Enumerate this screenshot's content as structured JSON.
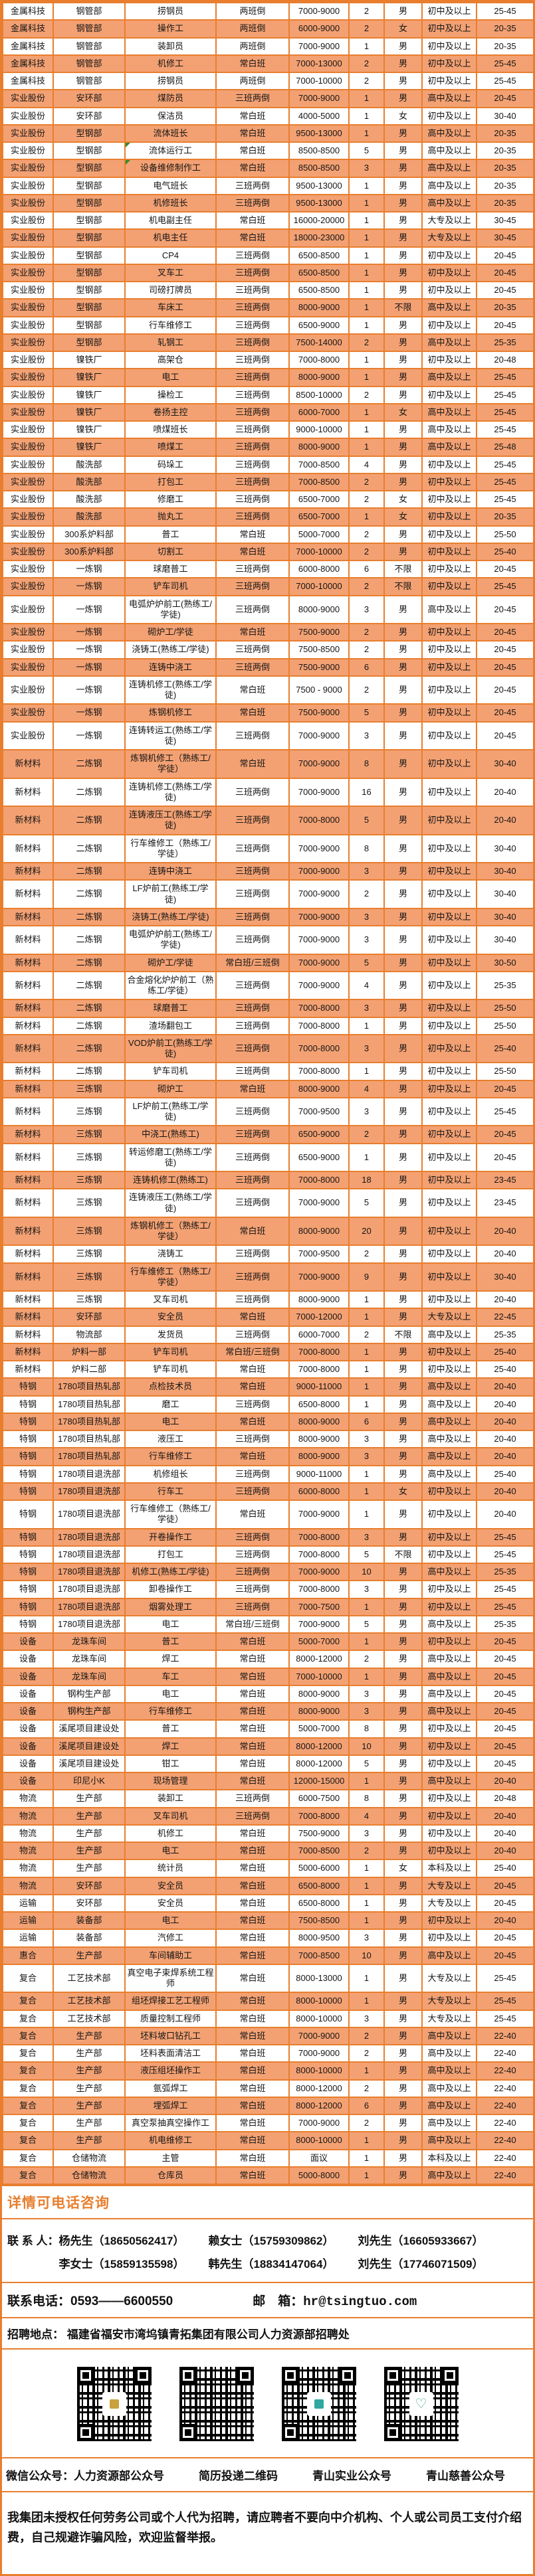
{
  "colors": {
    "accent_orange": "#e87e2e",
    "row_stripe_orange": "#f3a173",
    "flag_triangle_green": "#2e8b2e",
    "heart_green": "#3aa876"
  },
  "table": {
    "green_triangle_rows": [
      8,
      9
    ],
    "rows": [
      [
        "金属科技",
        "钢管部",
        "捞钢员",
        "两班倒",
        "7000-9000",
        "2",
        "男",
        "初中及以上",
        "25-45"
      ],
      [
        "金属科技",
        "钢管部",
        "操作工",
        "两班倒",
        "6000-9000",
        "2",
        "女",
        "初中及以上",
        "20-35"
      ],
      [
        "金属科技",
        "钢管部",
        "装卸员",
        "两班倒",
        "7000-9000",
        "1",
        "男",
        "初中及以上",
        "20-35"
      ],
      [
        "金属科技",
        "钢管部",
        "机修工",
        "常白班",
        "7000-13000",
        "2",
        "男",
        "初中及以上",
        "25-45"
      ],
      [
        "金属科技",
        "钢管部",
        "捞钢员",
        "两班倒",
        "7000-10000",
        "2",
        "男",
        "初中及以上",
        "25-45"
      ],
      [
        "实业股份",
        "安环部",
        "煤防员",
        "三班两倒",
        "7000-9000",
        "1",
        "男",
        "高中及以上",
        "20-45"
      ],
      [
        "实业股份",
        "安环部",
        "保洁员",
        "常白班",
        "4000-5000",
        "1",
        "女",
        "初中及以上",
        "30-40"
      ],
      [
        "实业股份",
        "型钢部",
        "流体班长",
        "常白班",
        "9500-13000",
        "1",
        "男",
        "高中及以上",
        "20-35"
      ],
      [
        "实业股份",
        "型钢部",
        "流体运行工",
        "常白班",
        "8500-8500",
        "5",
        "男",
        "高中及以上",
        "20-35"
      ],
      [
        "实业股份",
        "型钢部",
        "设备维修制作工",
        "常白班",
        "8500-8500",
        "3",
        "男",
        "高中及以上",
        "20-35"
      ],
      [
        "实业股份",
        "型钢部",
        "电气班长",
        "三班两倒",
        "9500-13000",
        "1",
        "男",
        "高中及以上",
        "20-35"
      ],
      [
        "实业股份",
        "型钢部",
        "机修班长",
        "三班两倒",
        "9500-13000",
        "1",
        "男",
        "高中及以上",
        "20-35"
      ],
      [
        "实业股份",
        "型钢部",
        "机电副主任",
        "常白班",
        "16000-20000",
        "1",
        "男",
        "大专及以上",
        "30-45"
      ],
      [
        "实业股份",
        "型钢部",
        "机电主任",
        "常白班",
        "18000-23000",
        "1",
        "男",
        "大专及以上",
        "30-45"
      ],
      [
        "实业股份",
        "型钢部",
        "CP4",
        "三班两倒",
        "6500-8500",
        "1",
        "男",
        "初中及以上",
        "20-45"
      ],
      [
        "实业股份",
        "型钢部",
        "叉车工",
        "三班两倒",
        "6500-8500",
        "1",
        "男",
        "初中及以上",
        "20-45"
      ],
      [
        "实业股份",
        "型钢部",
        "司磅打牌员",
        "三班两倒",
        "6500-8500",
        "1",
        "男",
        "初中及以上",
        "20-45"
      ],
      [
        "实业股份",
        "型钢部",
        "车床工",
        "三班两倒",
        "8000-9000",
        "1",
        "不限",
        "高中及以上",
        "20-35"
      ],
      [
        "实业股份",
        "型钢部",
        "行车维修工",
        "三班两倒",
        "6500-9000",
        "1",
        "男",
        "初中及以上",
        "20-45"
      ],
      [
        "实业股份",
        "型钢部",
        "轧钢工",
        "三班两倒",
        "7500-14000",
        "2",
        "男",
        "高中及以上",
        "25-35"
      ],
      [
        "实业股份",
        "镍铁厂",
        "高架仓",
        "三班两倒",
        "7000-8000",
        "1",
        "男",
        "初中及以上",
        "20-48"
      ],
      [
        "实业股份",
        "镍铁厂",
        "电工",
        "三班两倒",
        "8000-9000",
        "1",
        "男",
        "高中及以上",
        "25-45"
      ],
      [
        "实业股份",
        "镍铁厂",
        "操检工",
        "三班两倒",
        "8500-10000",
        "2",
        "男",
        "初中及以上",
        "25-45"
      ],
      [
        "实业股份",
        "镍铁厂",
        "卷扬主控",
        "三班两倒",
        "6000-7000",
        "1",
        "女",
        "高中及以上",
        "25-45"
      ],
      [
        "实业股份",
        "镍铁厂",
        "喷煤班长",
        "三班两倒",
        "9000-10000",
        "1",
        "男",
        "高中及以上",
        "25-45"
      ],
      [
        "实业股份",
        "镍铁厂",
        "喷煤工",
        "三班两倒",
        "8000-9000",
        "1",
        "男",
        "高中及以上",
        "25-48"
      ],
      [
        "实业股份",
        "酸洗部",
        "码垛工",
        "三班两倒",
        "7000-8500",
        "4",
        "男",
        "初中及以上",
        "25-45"
      ],
      [
        "实业股份",
        "酸洗部",
        "打包工",
        "三班两倒",
        "7000-8500",
        "2",
        "男",
        "初中及以上",
        "25-45"
      ],
      [
        "实业股份",
        "酸洗部",
        "修磨工",
        "三班两倒",
        "6500-7000",
        "2",
        "女",
        "初中及以上",
        "25-45"
      ],
      [
        "实业股份",
        "酸洗部",
        "抛丸工",
        "三班两倒",
        "6500-7000",
        "1",
        "女",
        "初中及以上",
        "20-35"
      ],
      [
        "实业股份",
        "300系炉料部",
        "普工",
        "常白班",
        "5000-7000",
        "2",
        "男",
        "初中及以上",
        "25-50"
      ],
      [
        "实业股份",
        "300系炉料部",
        "切割工",
        "常白班",
        "7000-10000",
        "2",
        "男",
        "初中及以上",
        "25-40"
      ],
      [
        "实业股份",
        "一炼钢",
        "球磨普工",
        "三班两倒",
        "6000-8000",
        "6",
        "不限",
        "初中及以上",
        "20-45"
      ],
      [
        "实业股份",
        "一炼钢",
        "铲车司机",
        "三班两倒",
        "7000-10000",
        "2",
        "不限",
        "初中及以上",
        "25-45"
      ],
      [
        "实业股份",
        "一炼钢",
        "电弧炉炉前工(熟练工/学徒)",
        "三班两倒",
        "8000-9000",
        "3",
        "男",
        "高中及以上",
        "20-45"
      ],
      [
        "实业股份",
        "一炼钢",
        "砌炉工/学徒",
        "常白班",
        "7500-9000",
        "2",
        "男",
        "初中及以上",
        "20-45"
      ],
      [
        "实业股份",
        "一炼钢",
        "浇铸工(熟练工/学徒)",
        "三班两倒",
        "7500-8500",
        "2",
        "男",
        "初中及以上",
        "20-45"
      ],
      [
        "实业股份",
        "一炼钢",
        "连铸中浇工",
        "三班两倒",
        "7500-9000",
        "6",
        "男",
        "初中及以上",
        "20-45"
      ],
      [
        "实业股份",
        "一炼钢",
        "连铸机修工(熟练工/学徒)",
        "常白班",
        "7500 - 9000",
        "2",
        "男",
        "初中及以上",
        "20-45"
      ],
      [
        "实业股份",
        "一炼钢",
        "炼钢机修工",
        "常白班",
        "7500-9000",
        "5",
        "男",
        "初中及以上",
        "20-45"
      ],
      [
        "实业股份",
        "一炼钢",
        "连铸转运工(熟练工/学徒)",
        "三班两倒",
        "7000-9000",
        "3",
        "男",
        "初中及以上",
        "20-45"
      ],
      [
        "新材料",
        "二炼钢",
        "炼钢机修工（熟练工/学徒）",
        "常白班",
        "7000-9000",
        "8",
        "男",
        "初中及以上",
        "30-40"
      ],
      [
        "新材料",
        "二炼钢",
        "连铸机修工(熟练工/学徒)",
        "三班两倒",
        "7000-9000",
        "16",
        "男",
        "初中及以上",
        "20-40"
      ],
      [
        "新材料",
        "二炼钢",
        "连铸液压工(熟练工/学徒)",
        "三班两倒",
        "7000-8000",
        "5",
        "男",
        "初中及以上",
        "20-40"
      ],
      [
        "新材料",
        "二炼钢",
        "行车维修工（熟练工/学徒）",
        "三班两倒",
        "7000-9000",
        "8",
        "男",
        "初中及以上",
        "30-40"
      ],
      [
        "新材料",
        "二炼钢",
        "连铸中浇工",
        "三班两倒",
        "7000-9000",
        "3",
        "男",
        "初中及以上",
        "30-40"
      ],
      [
        "新材料",
        "二炼钢",
        "LF炉前工(熟练工/学徒)",
        "三班两倒",
        "7000-9000",
        "2",
        "男",
        "初中及以上",
        "30-40"
      ],
      [
        "新材料",
        "二炼钢",
        "浇铸工(熟练工/学徒)",
        "三班两倒",
        "7000-9000",
        "3",
        "男",
        "初中及以上",
        "30-40"
      ],
      [
        "新材料",
        "二炼钢",
        "电弧炉炉前工(熟练工/学徒)",
        "三班两倒",
        "7000-9000",
        "3",
        "男",
        "初中及以上",
        "30-40"
      ],
      [
        "新材料",
        "二炼钢",
        "砌炉工/学徒",
        "常白班/三班倒",
        "7000-9000",
        "5",
        "男",
        "初中及以上",
        "30-50"
      ],
      [
        "新材料",
        "二炼钢",
        "合金熔化炉炉前工（熟练工/学徒）",
        "三班两倒",
        "7000-9000",
        "4",
        "男",
        "初中及以上",
        "25-35"
      ],
      [
        "新材料",
        "二炼钢",
        "球磨普工",
        "三班两倒",
        "7000-8000",
        "3",
        "男",
        "初中及以上",
        "25-50"
      ],
      [
        "新材料",
        "二炼钢",
        "渣场翻包工",
        "三班两倒",
        "7000-8000",
        "1",
        "男",
        "初中及以上",
        "25-50"
      ],
      [
        "新材料",
        "二炼钢",
        "VOD炉前工(熟练工/学徒)",
        "三班两倒",
        "7000-8000",
        "3",
        "男",
        "初中及以上",
        "25-40"
      ],
      [
        "新材料",
        "二炼钢",
        "铲车司机",
        "三班两倒",
        "7000-8000",
        "1",
        "男",
        "初中及以上",
        "25-50"
      ],
      [
        "新材料",
        "三炼钢",
        "砌炉工",
        "常白班",
        "8000-9000",
        "4",
        "男",
        "初中及以上",
        "20-45"
      ],
      [
        "新材料",
        "三炼钢",
        "LF炉前工(熟练工/学徒)",
        "三班两倒",
        "7000-9500",
        "3",
        "男",
        "初中及以上",
        "25-45"
      ],
      [
        "新材料",
        "三炼钢",
        "中浇工(熟练工)",
        "三班两倒",
        "6500-9000",
        "2",
        "男",
        "初中及以上",
        "20-45"
      ],
      [
        "新材料",
        "三炼钢",
        "转运修磨工(熟练工/学徒)",
        "三班两倒",
        "6500-9000",
        "1",
        "男",
        "初中及以上",
        "20-45"
      ],
      [
        "新材料",
        "三炼钢",
        "连铸机修工(熟练工)",
        "三班两倒",
        "7000-8000",
        "18",
        "男",
        "初中及以上",
        "23-45"
      ],
      [
        "新材料",
        "三炼钢",
        "连铸液压工(熟练工/学徒)",
        "三班两倒",
        "7000-9000",
        "5",
        "男",
        "初中及以上",
        "23-45"
      ],
      [
        "新材料",
        "三炼钢",
        "炼钢机修工（熟练工/学徒）",
        "常白班",
        "8000-9000",
        "20",
        "男",
        "初中及以上",
        "20-40"
      ],
      [
        "新材料",
        "三炼钢",
        "浇铸工",
        "三班两倒",
        "7000-9500",
        "2",
        "男",
        "初中及以上",
        "20-40"
      ],
      [
        "新材料",
        "三炼钢",
        "行车维修工（熟练工/学徒）",
        "三班两倒",
        "7000-9000",
        "9",
        "男",
        "初中及以上",
        "30-40"
      ],
      [
        "新材料",
        "三炼钢",
        "叉车司机",
        "三班两倒",
        "8000-9000",
        "1",
        "男",
        "初中及以上",
        "20-40"
      ],
      [
        "新材料",
        "安环部",
        "安全员",
        "常白班",
        "7000-12000",
        "1",
        "男",
        "大专及以上",
        "22-45"
      ],
      [
        "新材料",
        "物流部",
        "发货员",
        "三班两倒",
        "6000-7000",
        "2",
        "不限",
        "高中及以上",
        "25-35"
      ],
      [
        "新材料",
        "炉料一部",
        "铲车司机",
        "常白班/三班倒",
        "7000-8000",
        "1",
        "男",
        "初中及以上",
        "25-40"
      ],
      [
        "新材料",
        "炉料二部",
        "铲车司机",
        "常白班",
        "7000-8000",
        "1",
        "男",
        "初中及以上",
        "25-40"
      ],
      [
        "特钢",
        "1780项目热轧部",
        "点检技术员",
        "常白班",
        "9000-11000",
        "1",
        "男",
        "高中及以上",
        "20-40"
      ],
      [
        "特钢",
        "1780项目热轧部",
        "磨工",
        "三班两倒",
        "6500-8000",
        "1",
        "男",
        "高中及以上",
        "20-40"
      ],
      [
        "特钢",
        "1780项目热轧部",
        "电工",
        "常白班",
        "8000-9000",
        "6",
        "男",
        "高中及以上",
        "20-40"
      ],
      [
        "特钢",
        "1780项目热轧部",
        "液压工",
        "三班两倒",
        "8000-9000",
        "3",
        "男",
        "高中及以上",
        "20-40"
      ],
      [
        "特钢",
        "1780项目热轧部",
        "行车维修工",
        "常白班",
        "8000-9000",
        "3",
        "男",
        "高中及以上",
        "20-40"
      ],
      [
        "特钢",
        "1780项目退洗部",
        "机修组长",
        "三班两倒",
        "9000-11000",
        "1",
        "男",
        "高中及以上",
        "25-40"
      ],
      [
        "特钢",
        "1780项目退洗部",
        "行车工",
        "三班两倒",
        "6000-8000",
        "1",
        "女",
        "初中及以上",
        "20-40"
      ],
      [
        "特钢",
        "1780项目退洗部",
        "行车维修工（熟练工/学徒）",
        "常白班",
        "7000-9000",
        "1",
        "男",
        "初中及以上",
        "20-40"
      ],
      [
        "特钢",
        "1780项目退洗部",
        "开卷操作工",
        "三班两倒",
        "7000-8000",
        "3",
        "男",
        "初中及以上",
        "25-45"
      ],
      [
        "特钢",
        "1780项目退洗部",
        "打包工",
        "三班两倒",
        "7000-8000",
        "5",
        "不限",
        "初中及以上",
        "25-45"
      ],
      [
        "特钢",
        "1780项目退洗部",
        "机修工(熟练工/学徒)",
        "三班两倒",
        "7000-9000",
        "10",
        "男",
        "高中及以上",
        "25-35"
      ],
      [
        "特钢",
        "1780项目退洗部",
        "卸卷操作工",
        "三班两倒",
        "7000-8000",
        "3",
        "男",
        "初中及以上",
        "25-45"
      ],
      [
        "特钢",
        "1780项目退洗部",
        "烟雾处理工",
        "三班两倒",
        "7000-7500",
        "1",
        "男",
        "初中及以上",
        "25-45"
      ],
      [
        "特钢",
        "1780项目退洗部",
        "电工",
        "常白班/三班倒",
        "7000-9000",
        "5",
        "男",
        "高中及以上",
        "25-35"
      ],
      [
        "设备",
        "龙珠车间",
        "普工",
        "常白班",
        "5000-7000",
        "1",
        "男",
        "初中及以上",
        "20-45"
      ],
      [
        "设备",
        "龙珠车间",
        "焊工",
        "常白班",
        "8000-12000",
        "2",
        "男",
        "高中及以上",
        "20-45"
      ],
      [
        "设备",
        "龙珠车间",
        "车工",
        "常白班",
        "7000-10000",
        "1",
        "男",
        "高中及以上",
        "20-45"
      ],
      [
        "设备",
        "钢构生产部",
        "电工",
        "常白班",
        "8000-9000",
        "3",
        "男",
        "高中及以上",
        "20-45"
      ],
      [
        "设备",
        "钢构生产部",
        "行车维修工",
        "常白班",
        "8000-9000",
        "3",
        "男",
        "高中及以上",
        "20-45"
      ],
      [
        "设备",
        "溪尾项目建设处",
        "普工",
        "常白班",
        "5000-7000",
        "8",
        "男",
        "初中及以上",
        "20-45"
      ],
      [
        "设备",
        "溪尾项目建设处",
        "焊工",
        "常白班",
        "8000-12000",
        "10",
        "男",
        "初中及以上",
        "20-45"
      ],
      [
        "设备",
        "溪尾项目建设处",
        "钳工",
        "常白班",
        "8000-12000",
        "5",
        "男",
        "初中及以上",
        "20-45"
      ],
      [
        "设备",
        "印尼小K",
        "现场管理",
        "常白班",
        "12000-15000",
        "1",
        "男",
        "高中及以上",
        "20-40"
      ],
      [
        "物流",
        "生产部",
        "装卸工",
        "三班两倒",
        "6000-7500",
        "8",
        "男",
        "初中及以上",
        "20-48"
      ],
      [
        "物流",
        "生产部",
        "叉车司机",
        "三班两倒",
        "7000-8000",
        "4",
        "男",
        "初中及以上",
        "20-40"
      ],
      [
        "物流",
        "生产部",
        "机修工",
        "常白班",
        "7500-9000",
        "3",
        "男",
        "初中及以上",
        "20-40"
      ],
      [
        "物流",
        "生产部",
        "电工",
        "常白班",
        "7000-8500",
        "2",
        "男",
        "初中及以上",
        "20-40"
      ],
      [
        "物流",
        "生产部",
        "统计员",
        "常白班",
        "5000-6000",
        "1",
        "女",
        "本科及以上",
        "25-40"
      ],
      [
        "物流",
        "安环部",
        "安全员",
        "常白班",
        "6500-8000",
        "1",
        "男",
        "大专及以上",
        "20-45"
      ],
      [
        "运输",
        "安环部",
        "安全员",
        "常白班",
        "6500-8000",
        "1",
        "男",
        "大专及以上",
        "20-45"
      ],
      [
        "运输",
        "装备部",
        "电工",
        "常白班",
        "7500-8500",
        "1",
        "男",
        "初中及以上",
        "20-40"
      ],
      [
        "运输",
        "装备部",
        "汽修工",
        "常白班",
        "8000-9500",
        "3",
        "男",
        "初中及以上",
        "20-45"
      ],
      [
        "惠合",
        "生产部",
        "车间辅助工",
        "常白班",
        "7000-8500",
        "10",
        "男",
        "高中及以上",
        "20-45"
      ],
      [
        "复合",
        "工艺技术部",
        "真空电子束焊系统工程师",
        "常白班",
        "8000-13000",
        "1",
        "男",
        "大专及以上",
        "25-45"
      ],
      [
        "复合",
        "工艺技术部",
        "组坯焊接工艺工程师",
        "常白班",
        "8000-10000",
        "1",
        "男",
        "大专及以上",
        "25-45"
      ],
      [
        "复合",
        "工艺技术部",
        "质量控制工程师",
        "常白班",
        "8000-10000",
        "3",
        "男",
        "大专及以上",
        "25-45"
      ],
      [
        "复合",
        "生产部",
        "坯料坡口钻孔工",
        "常白班",
        "7000-9000",
        "2",
        "男",
        "高中及以上",
        "22-40"
      ],
      [
        "复合",
        "生产部",
        "坯料表面清洁工",
        "常白班",
        "7000-9000",
        "2",
        "男",
        "高中及以上",
        "22-40"
      ],
      [
        "复合",
        "生产部",
        "液压组坯操作工",
        "常白班",
        "8000-10000",
        "1",
        "男",
        "高中及以上",
        "22-40"
      ],
      [
        "复合",
        "生产部",
        "氩弧焊工",
        "常白班",
        "8000-12000",
        "2",
        "男",
        "高中及以上",
        "22-40"
      ],
      [
        "复合",
        "生产部",
        "埋弧焊工",
        "常白班",
        "8000-12000",
        "6",
        "男",
        "高中及以上",
        "22-40"
      ],
      [
        "复合",
        "生产部",
        "真空泵抽真空操作工",
        "常白班",
        "7000-9000",
        "2",
        "男",
        "高中及以上",
        "22-40"
      ],
      [
        "复合",
        "生产部",
        "机电维修工",
        "常白班",
        "8000-10000",
        "1",
        "男",
        "高中及以上",
        "22-40"
      ],
      [
        "复合",
        "仓储物流",
        "主管",
        "常白班",
        "面议",
        "1",
        "男",
        "本科及以上",
        "22-40"
      ],
      [
        "复合",
        "仓储物流",
        "仓库员",
        "常白班",
        "5000-8000",
        "1",
        "男",
        "高中及以上",
        "22-40"
      ]
    ]
  },
  "footer": {
    "band_title": "详情可电话咨询",
    "contact_label": "联 系 人：",
    "contact_rows": [
      [
        "杨先生（18650562417）",
        "赖女士（15759309862）",
        "刘先生（16605933667）"
      ],
      [
        "李女士（15859135598）",
        "韩先生（18834147064）",
        "刘先生（17746071509）"
      ]
    ],
    "phone_label": "联系电话：",
    "phone_value": "0593——6600550",
    "mail_label": "邮　箱：",
    "mail_value": "hr@tsingtuo.com",
    "address_label": "招聘地点：",
    "address_value": "福建省福安市湾坞镇青拓集团有限公司人力资源部招聘处",
    "qr_captions": [
      "微信公众号：人力资源部公众号",
      "简历投递二维码",
      "青山实业公众号",
      "青山慈善公众号"
    ],
    "notice": "我集团未授权任何劳务公司或个人代为招聘，请应聘者不要向中介机构、个人或公司员工支付介绍费，自己规避诈骗风险，欢迎监督举报。"
  }
}
